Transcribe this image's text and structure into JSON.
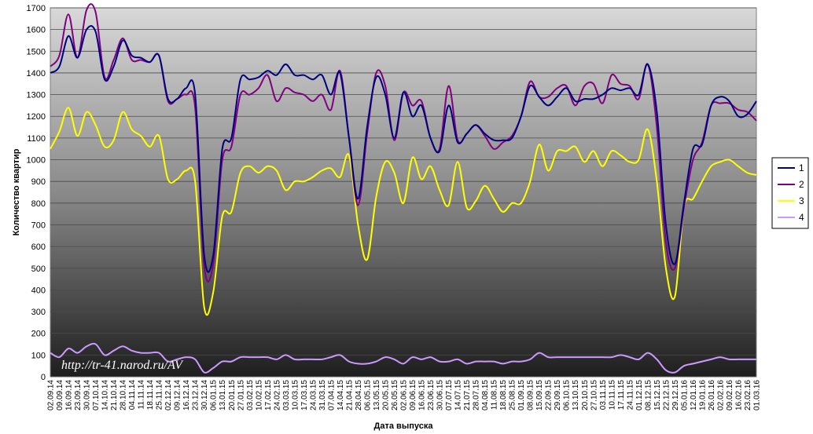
{
  "chart_data": {
    "type": "line",
    "xlabel": "Дата выпуска",
    "ylabel": "Количество квартир",
    "ylim": [
      0,
      1700
    ],
    "yticks": [
      0,
      100,
      200,
      300,
      400,
      500,
      600,
      700,
      800,
      900,
      1000,
      1100,
      1200,
      1300,
      1400,
      1500,
      1600,
      1700
    ],
    "grid": true,
    "legend_position": "right",
    "watermark": "http://tr-41.narod.ru/AV",
    "categories": [
      "02.09.14",
      "09.09.14",
      "16.09.14",
      "23.09.14",
      "30.09.14",
      "07.10.14",
      "14.10.14",
      "21.10.14",
      "28.10.14",
      "04.11.14",
      "11.11.14",
      "18.11.14",
      "25.11.14",
      "02.12.14",
      "09.12.14",
      "16.12.14",
      "23.12.14",
      "30.12.14",
      "06.01.15",
      "13.01.15",
      "20.01.15",
      "27.01.15",
      "03.02.15",
      "10.02.15",
      "17.02.15",
      "24.02.15",
      "03.03.15",
      "10.03.15",
      "17.03.15",
      "24.03.15",
      "31.03.15",
      "07.04.15",
      "14.04.15",
      "21.04.15",
      "28.04.15",
      "06.05.15",
      "13.05.15",
      "20.05.15",
      "26.05.15",
      "02.06.15",
      "09.06.15",
      "16.06.15",
      "23.06.15",
      "30.06.15",
      "07.07.15",
      "14.07.15",
      "21.07.15",
      "28.07.15",
      "04.08.15",
      "11.08.15",
      "18.08.15",
      "25.08.15",
      "01.09.15",
      "08.09.15",
      "15.09.15",
      "22.09.15",
      "29.09.15",
      "06.10.15",
      "13.10.15",
      "20.10.15",
      "27.10.15",
      "03.11.15",
      "10.11.15",
      "17.11.15",
      "24.11.15",
      "01.12.15",
      "08.12.15",
      "15.12.15",
      "22.12.15",
      "29.12.15",
      "05.01.16",
      "12.01.16",
      "19.01.16",
      "26.01.16",
      "02.02.16",
      "09.02.16",
      "16.02.16",
      "23.02.16",
      "01.03.16"
    ],
    "series": [
      {
        "name": "1",
        "color": "#000080",
        "values": [
          1400,
          1430,
          1570,
          1470,
          1600,
          1590,
          1370,
          1430,
          1550,
          1480,
          1470,
          1450,
          1480,
          1280,
          1280,
          1330,
          1300,
          560,
          560,
          1050,
          1100,
          1370,
          1370,
          1380,
          1410,
          1390,
          1440,
          1390,
          1390,
          1370,
          1390,
          1300,
          1400,
          1100,
          820,
          1150,
          1380,
          1300,
          1100,
          1310,
          1200,
          1250,
          1100,
          1040,
          1250,
          1080,
          1120,
          1160,
          1120,
          1090,
          1090,
          1100,
          1200,
          1340,
          1290,
          1250,
          1290,
          1330,
          1270,
          1280,
          1280,
          1300,
          1330,
          1320,
          1330,
          1300,
          1440,
          1220,
          700,
          520,
          800,
          1050,
          1070,
          1250,
          1290,
          1270,
          1200,
          1210,
          1270
        ]
      },
      {
        "name": "2",
        "color": "#800080",
        "values": [
          1430,
          1480,
          1670,
          1470,
          1690,
          1680,
          1380,
          1460,
          1560,
          1460,
          1460,
          1450,
          1480,
          1270,
          1280,
          1300,
          1240,
          510,
          520,
          1000,
          1060,
          1300,
          1300,
          1330,
          1390,
          1270,
          1330,
          1310,
          1300,
          1270,
          1300,
          1230,
          1410,
          1100,
          790,
          1120,
          1400,
          1340,
          1090,
          1310,
          1250,
          1270,
          1100,
          1050,
          1340,
          1090,
          1120,
          1160,
          1110,
          1050,
          1080,
          1110,
          1200,
          1360,
          1290,
          1290,
          1330,
          1340,
          1250,
          1340,
          1350,
          1260,
          1390,
          1350,
          1340,
          1280,
          1440,
          1150,
          620,
          500,
          780,
          1000,
          1080,
          1250,
          1260,
          1260,
          1230,
          1220,
          1180
        ]
      },
      {
        "name": "3",
        "color": "#ffff00",
        "values": [
          1050,
          1130,
          1240,
          1110,
          1220,
          1160,
          1060,
          1090,
          1220,
          1140,
          1110,
          1060,
          1110,
          910,
          910,
          950,
          900,
          320,
          390,
          740,
          760,
          940,
          970,
          940,
          970,
          950,
          860,
          900,
          900,
          920,
          950,
          960,
          920,
          1020,
          700,
          540,
          830,
          990,
          940,
          800,
          1010,
          910,
          970,
          860,
          790,
          990,
          780,
          810,
          880,
          820,
          760,
          800,
          800,
          900,
          1070,
          950,
          1040,
          1040,
          1060,
          990,
          1040,
          970,
          1040,
          1020,
          990,
          1000,
          1140,
          900,
          500,
          370,
          780,
          820,
          900,
          970,
          990,
          1000,
          970,
          940,
          930
        ]
      },
      {
        "name": "4",
        "color": "#cc99ff",
        "values": [
          110,
          90,
          130,
          110,
          140,
          150,
          100,
          120,
          140,
          120,
          110,
          110,
          110,
          70,
          80,
          90,
          80,
          20,
          40,
          70,
          70,
          90,
          90,
          90,
          90,
          80,
          100,
          80,
          80,
          80,
          80,
          90,
          100,
          70,
          60,
          60,
          70,
          90,
          80,
          60,
          90,
          80,
          90,
          70,
          70,
          80,
          60,
          70,
          70,
          70,
          60,
          70,
          70,
          80,
          110,
          90,
          90,
          90,
          90,
          90,
          90,
          90,
          90,
          100,
          90,
          80,
          110,
          80,
          30,
          20,
          50,
          60,
          70,
          80,
          90,
          80,
          80,
          80,
          80
        ]
      }
    ]
  }
}
